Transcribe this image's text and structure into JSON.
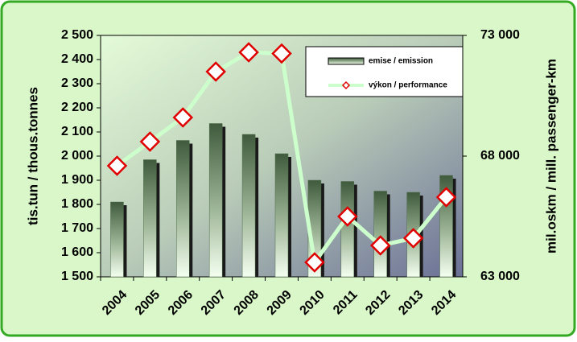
{
  "chart_data": {
    "type": "bar-line",
    "categories": [
      "2004",
      "2005",
      "2006",
      "2007",
      "2008",
      "2009",
      "2010",
      "2011",
      "2012",
      "2013",
      "2014"
    ],
    "ylabel": "tis.tun / thous.tonnes",
    "y2label": "mil.oskm / mill. passenger-km",
    "series": [
      {
        "name": "emise / emission",
        "type": "bar",
        "color": "#4f6e4a",
        "values": [
          1810,
          1985,
          2065,
          2135,
          2090,
          2010,
          1900,
          1895,
          1855,
          1850,
          1920
        ]
      },
      {
        "name": "výkon / performance",
        "type": "line",
        "axis": "y2",
        "color": "#ccffcc",
        "values": [
          67600,
          68600,
          69600,
          71500,
          72300,
          72250,
          63600,
          65500,
          64300,
          64600,
          66300
        ]
      }
    ],
    "ylim": [
      1500,
      2500
    ],
    "yticks": [
      {
        "value": 1500,
        "label": "1 500"
      },
      {
        "value": 1600,
        "label": "1 600"
      },
      {
        "value": 1700,
        "label": "1 700"
      },
      {
        "value": 1800,
        "label": "1 800"
      },
      {
        "value": 1900,
        "label": "1 900"
      },
      {
        "value": 2000,
        "label": "2 000"
      },
      {
        "value": 2100,
        "label": "2 100"
      },
      {
        "value": 2200,
        "label": "2 200"
      },
      {
        "value": 2300,
        "label": "2 300"
      },
      {
        "value": 2400,
        "label": "2 400"
      },
      {
        "value": 2500,
        "label": "2 500"
      }
    ],
    "y2lim": [
      63000,
      73000
    ],
    "y2ticks": [
      {
        "value": 63000,
        "label": "63 000"
      },
      {
        "value": 68000,
        "label": "68 000"
      },
      {
        "value": 73000,
        "label": "73 000"
      }
    ],
    "legend": "upper right"
  }
}
